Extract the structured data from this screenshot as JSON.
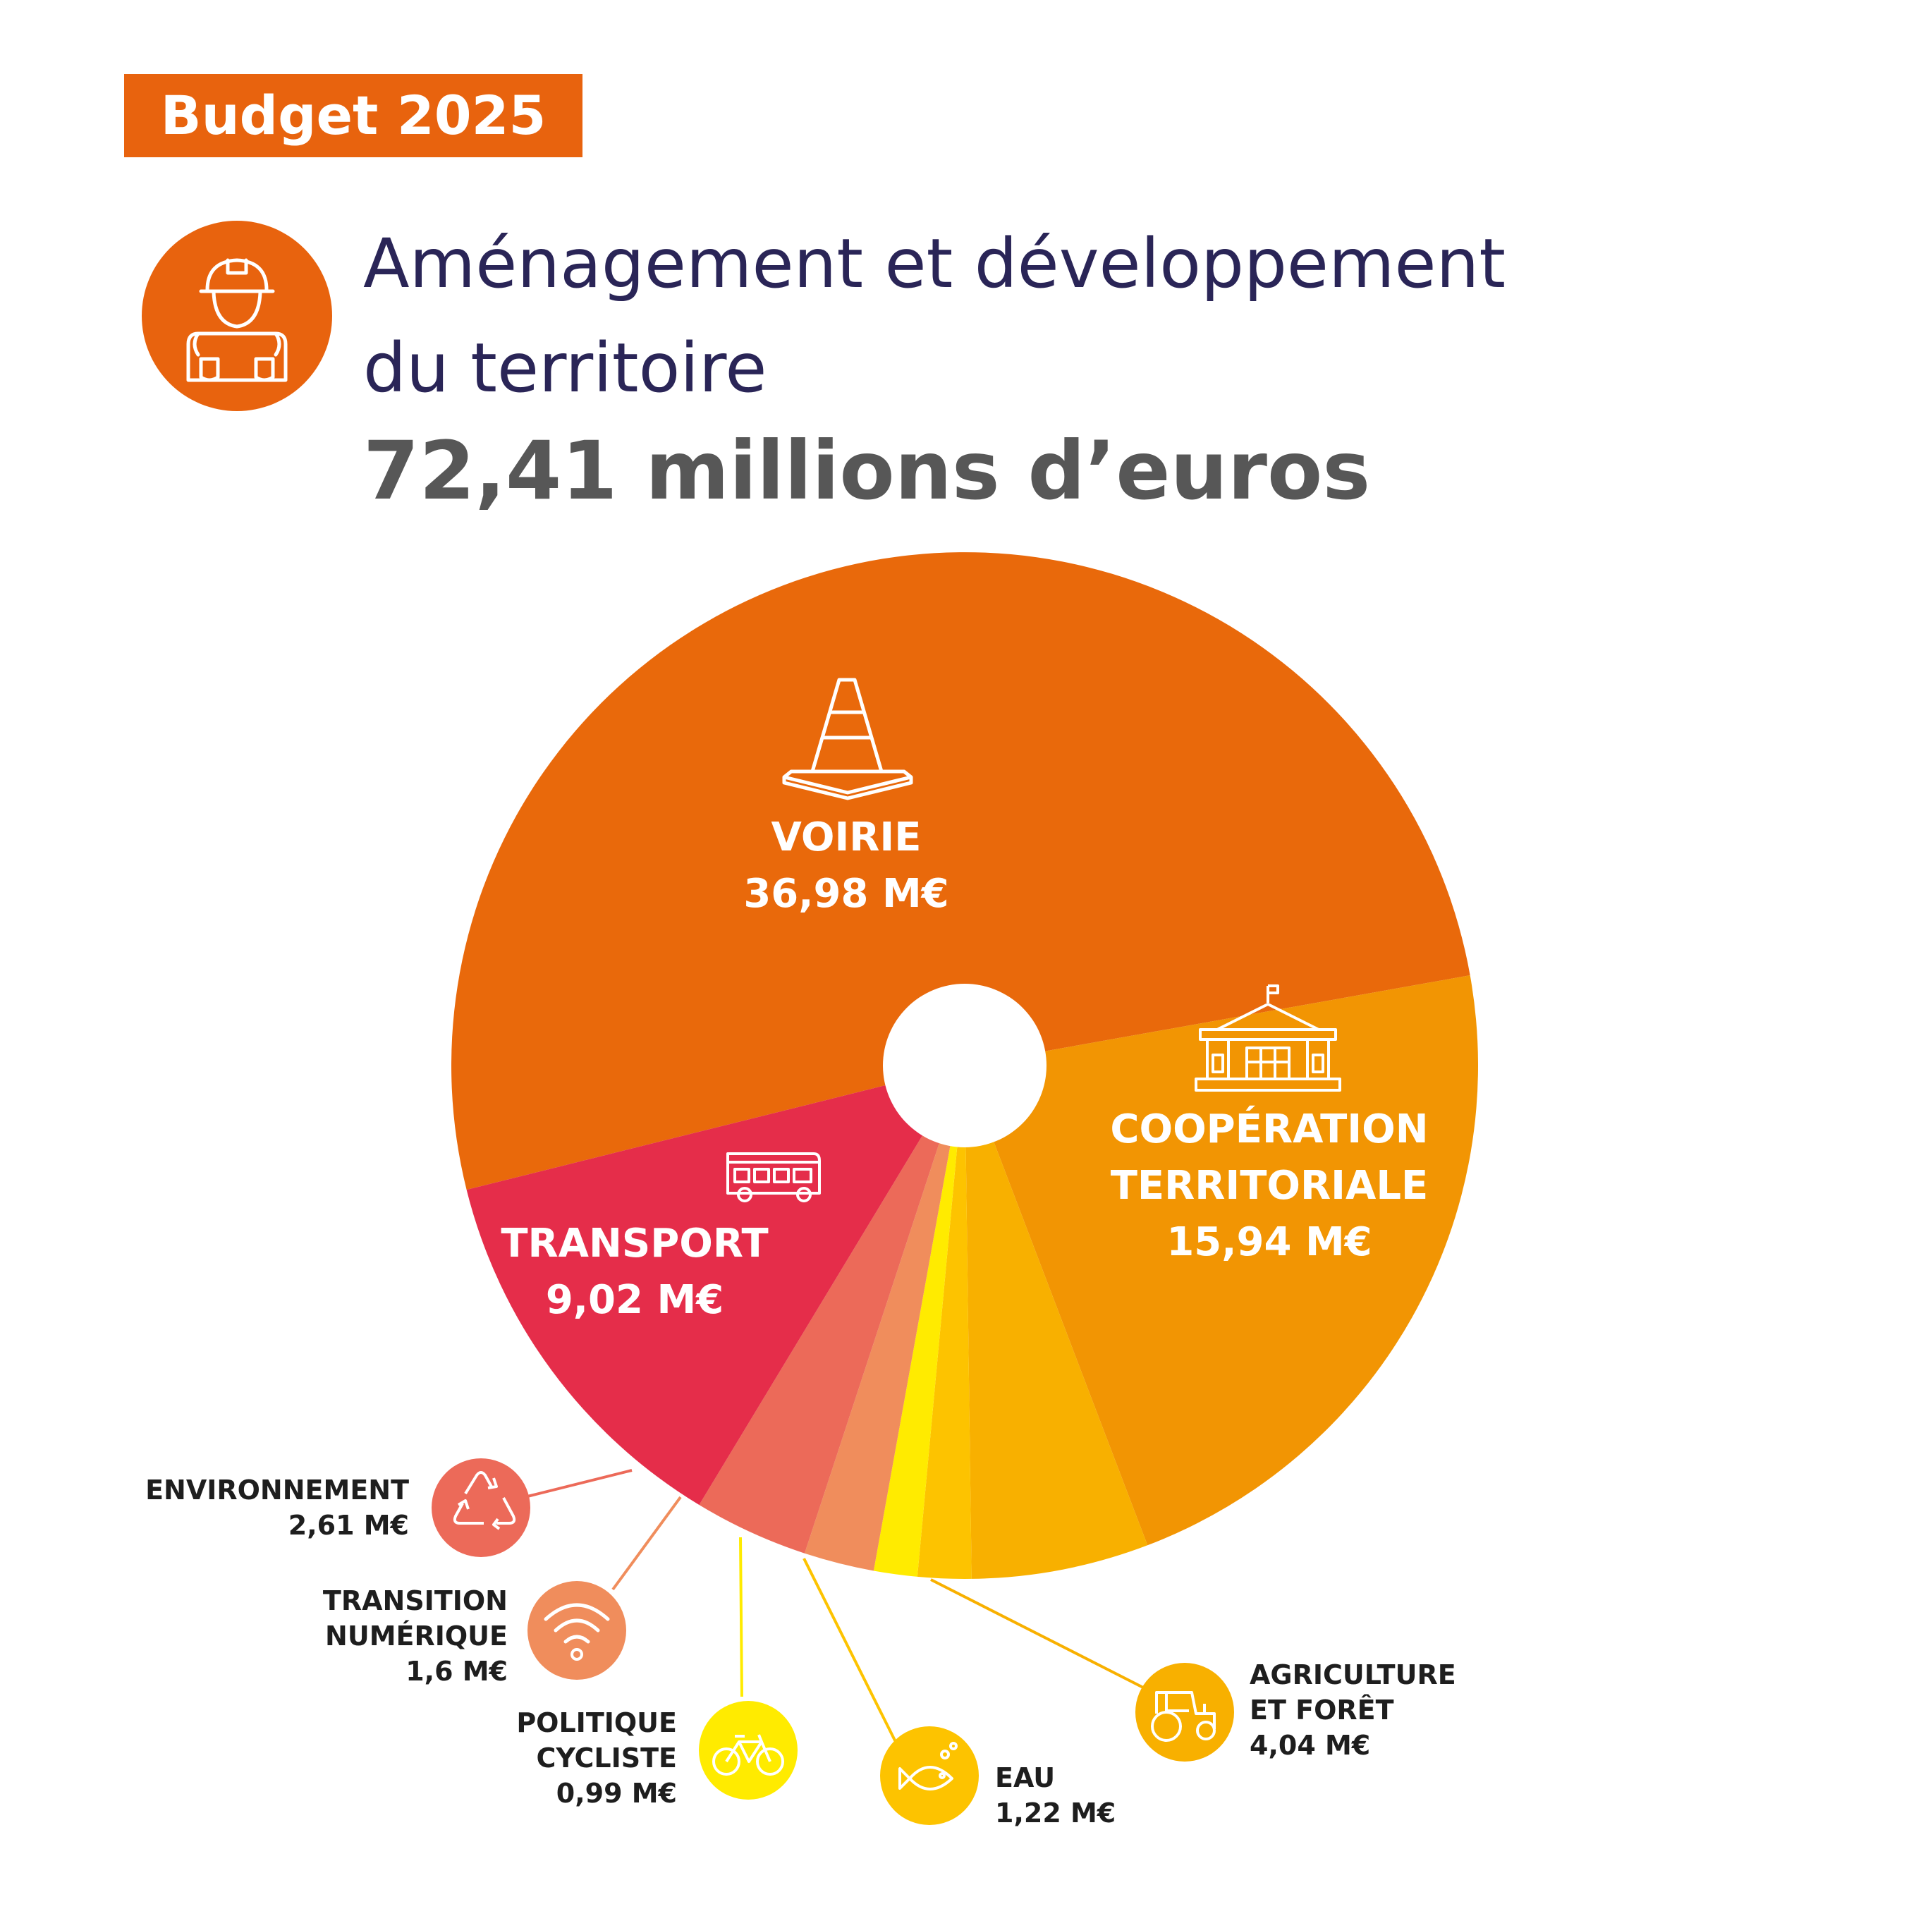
{
  "header": {
    "badge": "Budget 2025",
    "title_line1": "Aménagement et développement",
    "title_line2": "du territoire",
    "total": "72,41 millions d’euros",
    "icon": "worker-with-plans-icon"
  },
  "colors": {
    "accent": "#e8630e",
    "title_text": "#2a2557",
    "total_text": "#575757"
  },
  "chart_data": {
    "type": "pie",
    "title": "Aménagement et développement du territoire",
    "total": 72.41,
    "unit": "M€",
    "slices": [
      {
        "label": "VOIRIE",
        "value": 36.98,
        "display": "36,98 M€",
        "color": "#e9690b",
        "icon": "traffic-cone-icon"
      },
      {
        "label": "COOPÉRATION TERRITORIALE",
        "value": 15.94,
        "display": "15,94 M€",
        "color": "#f29503",
        "icon": "town-hall-icon"
      },
      {
        "label": "AGRICULTURE ET FORÊT",
        "value": 4.04,
        "display": "4,04 M€",
        "color": "#f8b000",
        "icon": "tractor-icon"
      },
      {
        "label": "EAU",
        "value": 1.22,
        "display": "1,22 M€",
        "color": "#fdc300",
        "icon": "fish-icon"
      },
      {
        "label": "POLITIQUE CYCLISTE",
        "value": 0.99,
        "display": "0,99 M€",
        "color": "#ffeb00",
        "icon": "bicycle-icon"
      },
      {
        "label": "TRANSITION NUMÉRIQUE",
        "value": 1.6,
        "display": "1,6 M€",
        "color": "#f08d5c",
        "icon": "wifi-icon"
      },
      {
        "label": "ENVIRONNEMENT",
        "value": 2.61,
        "display": "2,61 M€",
        "color": "#ec6a59",
        "icon": "recycle-icon"
      },
      {
        "label": "TRANSPORT",
        "value": 9.02,
        "display": "9,02 M€",
        "color": "#e52d4a",
        "icon": "bus-icon"
      }
    ]
  },
  "labels": {
    "voirie": {
      "name": "VOIRIE",
      "value": "36,98 M€"
    },
    "cooperation": {
      "line1": "COOPÉRATION",
      "line2": "TERRITORIALE",
      "value": "15,94 M€"
    },
    "transport": {
      "name": "TRANSPORT",
      "value": "9,02 M€"
    },
    "environnement": {
      "name": "ENVIRONNEMENT",
      "value": "2,61 M€"
    },
    "numerique": {
      "line1": "TRANSITION",
      "line2": "NUMÉRIQUE",
      "value": "1,6 M€"
    },
    "cycliste": {
      "line1": "POLITIQUE",
      "line2": "CYCLISTE",
      "value": "0,99 M€"
    },
    "eau": {
      "name": "EAU",
      "value": "1,22 M€"
    },
    "agriculture": {
      "line1": "AGRICULTURE",
      "line2": "ET FORÊT",
      "value": "4,04 M€"
    }
  }
}
